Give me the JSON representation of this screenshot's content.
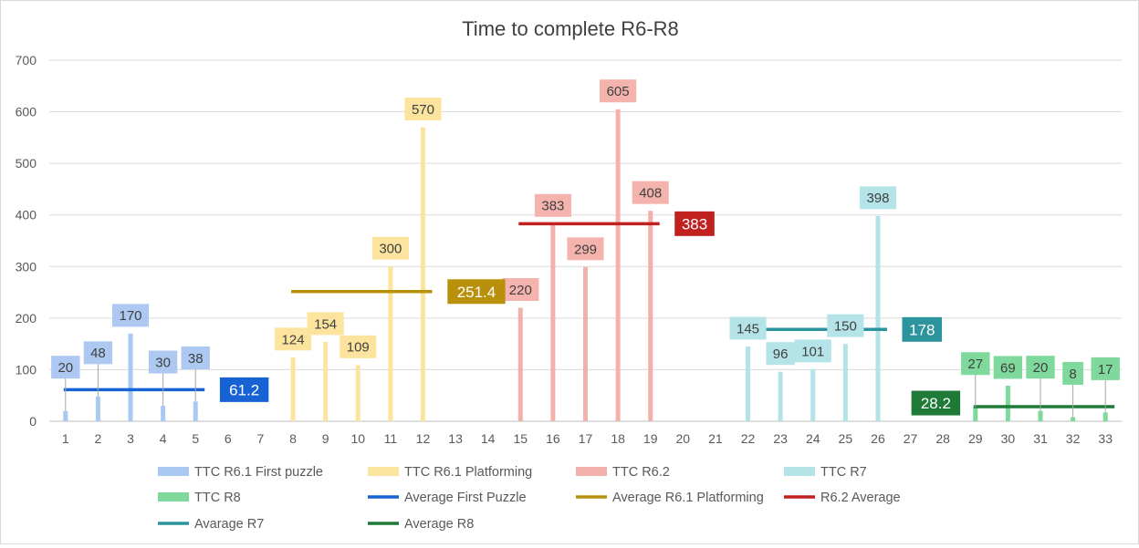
{
  "chart_data": {
    "type": "bar",
    "title": "Time to complete R6-R8",
    "xlabel": "",
    "ylabel": "",
    "ylim": [
      0,
      700
    ],
    "yticks": [
      0,
      100,
      200,
      300,
      400,
      500,
      600,
      700
    ],
    "categories": [
      "1",
      "2",
      "3",
      "4",
      "5",
      "6",
      "7",
      "8",
      "9",
      "10",
      "11",
      "12",
      "13",
      "14",
      "15",
      "16",
      "17",
      "18",
      "19",
      "20",
      "21",
      "22",
      "23",
      "24",
      "25",
      "26",
      "27",
      "28",
      "29",
      "30",
      "31",
      "32",
      "33"
    ],
    "grid": true,
    "legend_position": "bottom",
    "bar_series": [
      {
        "name": "TTC R6.1 First puzzle",
        "color": "#a9c8f2",
        "label_bg": "#adc9f1",
        "x": [
          1,
          2,
          3,
          4,
          5
        ],
        "values": [
          20,
          48,
          170,
          30,
          38
        ],
        "labels": [
          "20",
          "48",
          "170",
          "30",
          "38"
        ]
      },
      {
        "name": "TTC R6.1 Platforming",
        "color": "#fbe49d",
        "label_bg": "#fce49e",
        "x": [
          8,
          9,
          10,
          11,
          12
        ],
        "values": [
          124,
          154,
          109,
          300,
          570
        ],
        "labels": [
          "124",
          "154",
          "109",
          "300",
          "570"
        ]
      },
      {
        "name": "TTC R6.2",
        "color": "#f3b1ab",
        "label_bg": "#f4b3ad",
        "x": [
          15,
          16,
          17,
          18,
          19
        ],
        "values": [
          220,
          383,
          299,
          605,
          408
        ],
        "labels": [
          "220",
          "383",
          "299",
          "605",
          "408"
        ]
      },
      {
        "name": "TTC R7",
        "color": "#b3e3e7",
        "label_bg": "#b4e4e8",
        "x": [
          22,
          23,
          24,
          25,
          26
        ],
        "values": [
          145,
          96,
          101,
          150,
          398
        ],
        "labels": [
          "145",
          "96",
          "101",
          "150",
          "398"
        ]
      },
      {
        "name": "TTC R8",
        "color": "#7ed99a",
        "label_bg": "#7fd99c",
        "x": [
          29,
          30,
          31,
          32,
          33
        ],
        "values": [
          27,
          69,
          20,
          8,
          17
        ],
        "labels": [
          "27",
          "69",
          "20",
          "8",
          "17"
        ]
      }
    ],
    "average_series": [
      {
        "name": "Average First Puzzle",
        "color": "#1763d4",
        "x_range": [
          1,
          5
        ],
        "value": 61.2,
        "label": "61.2"
      },
      {
        "name": "Average R6.1 Platforming",
        "color": "#b8900b",
        "x_range": [
          8,
          12
        ],
        "value": 251.4,
        "label": "251.4"
      },
      {
        "name": "R6.2 Average",
        "color": "#c0211f",
        "x_range": [
          15,
          19
        ],
        "value": 383,
        "label": "383"
      },
      {
        "name": "Avarage R7",
        "color": "#2c949d",
        "x_range": [
          22,
          26
        ],
        "value": 178,
        "label": "178"
      },
      {
        "name": "Average R8",
        "color": "#1f7a38",
        "x_range": [
          29,
          33
        ],
        "value": 28.2,
        "label": "28.2"
      }
    ],
    "legend": [
      {
        "name": "TTC R6.1 First puzzle",
        "kind": "bar",
        "color": "#a9c8f2"
      },
      {
        "name": "TTC R6.1 Platforming",
        "kind": "bar",
        "color": "#fbe49d"
      },
      {
        "name": "TTC R6.2",
        "kind": "bar",
        "color": "#f3b1ab"
      },
      {
        "name": "TTC R7",
        "kind": "bar",
        "color": "#b3e3e7"
      },
      {
        "name": "TTC R8",
        "kind": "bar",
        "color": "#7ed99a"
      },
      {
        "name": "Average First Puzzle",
        "kind": "line",
        "color": "#1763d4"
      },
      {
        "name": "Average R6.1 Platforming",
        "kind": "line",
        "color": "#b8900b"
      },
      {
        "name": "R6.2 Average",
        "kind": "line",
        "color": "#c0211f"
      },
      {
        "name": "Avarage R7",
        "kind": "line",
        "color": "#2c949d"
      },
      {
        "name": "Average R8",
        "kind": "line",
        "color": "#1f7a38"
      }
    ]
  }
}
